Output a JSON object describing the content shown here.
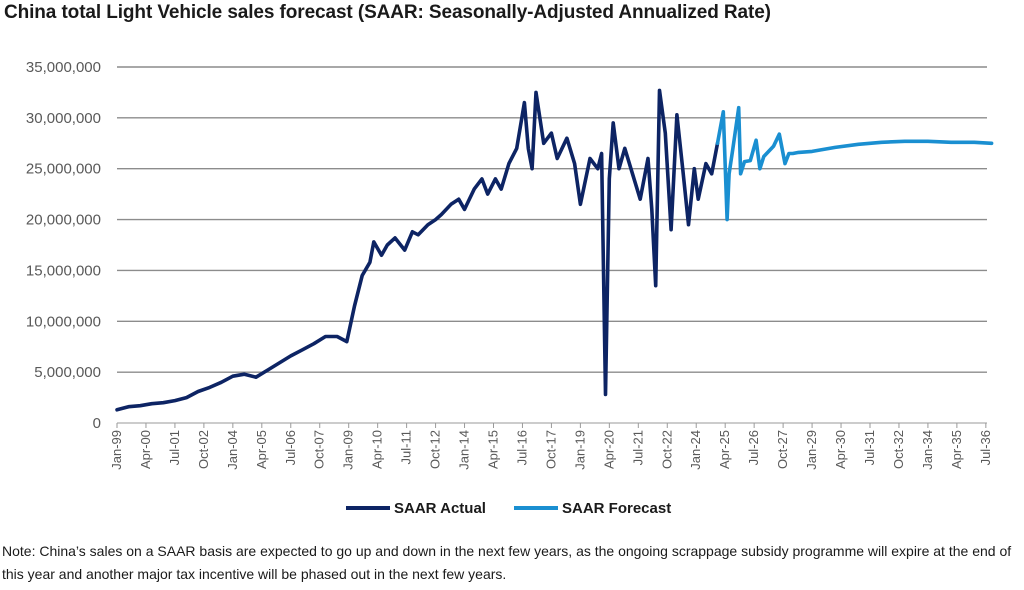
{
  "page": {
    "title": "China total Light Vehicle sales forecast (SAAR: Seasonally-Adjusted Annualized Rate)",
    "note": "Note: China’s sales on a SAAR basis are expected to go up and down in the next few years, as the ongoing scrappage subsidy programme will expire at the end of this year and another major tax incentive will be phased out in the next few years."
  },
  "chart_data": {
    "type": "line",
    "title": "China total Light Vehicle sales forecast (SAAR: Seasonally-Adjusted Annualized Rate)",
    "xlabel": "",
    "ylabel": "",
    "ylim": [
      0,
      35000000
    ],
    "grid": true,
    "legend_position": "bottom",
    "y_ticks": [
      0,
      5000000,
      10000000,
      15000000,
      20000000,
      25000000,
      30000000,
      35000000
    ],
    "y_tick_labels": [
      "0",
      "5,000,000",
      "10,000,000",
      "15,000,000",
      "20,000,000",
      "25,000,000",
      "30,000,000",
      "35,000,000"
    ],
    "x_tick_labels": [
      "Jan-99",
      "Apr-00",
      "Jul-01",
      "Oct-02",
      "Jan-04",
      "Apr-05",
      "Jul-06",
      "Oct-07",
      "Jan-09",
      "Apr-10",
      "Jul-11",
      "Oct-12",
      "Jan-14",
      "Apr-15",
      "Jul-16",
      "Oct-17",
      "Jan-19",
      "Apr-20",
      "Jul-21",
      "Oct-22",
      "Jan-24",
      "Apr-25",
      "Jul-26",
      "Oct-27",
      "Jan-29",
      "Apr-30",
      "Jul-31",
      "Oct-32",
      "Jan-34",
      "Apr-35",
      "Jul-36"
    ],
    "series": [
      {
        "name": "SAAR Actual",
        "color": "#0d2464",
        "x": [
          "1999-01",
          "1999-07",
          "2000-01",
          "2000-07",
          "2001-01",
          "2001-07",
          "2002-01",
          "2002-07",
          "2003-01",
          "2003-07",
          "2004-01",
          "2004-07",
          "2005-01",
          "2005-07",
          "2006-01",
          "2006-07",
          "2007-01",
          "2007-07",
          "2008-01",
          "2008-07",
          "2008-12",
          "2009-04",
          "2009-08",
          "2009-12",
          "2010-02",
          "2010-06",
          "2010-09",
          "2011-01",
          "2011-06",
          "2011-10",
          "2012-01",
          "2012-06",
          "2012-10",
          "2013-01",
          "2013-06",
          "2013-10",
          "2014-01",
          "2014-06",
          "2014-10",
          "2015-01",
          "2015-05",
          "2015-08",
          "2015-12",
          "2016-04",
          "2016-08",
          "2016-10",
          "2016-12",
          "2017-02",
          "2017-06",
          "2017-10",
          "2018-01",
          "2018-06",
          "2018-10",
          "2019-01",
          "2019-06",
          "2019-10",
          "2019-12",
          "2020-02",
          "2020-04",
          "2020-06",
          "2020-09",
          "2020-12",
          "2021-04",
          "2021-08",
          "2021-12",
          "2022-02",
          "2022-04",
          "2022-06",
          "2022-09",
          "2022-12",
          "2023-03",
          "2023-06",
          "2023-09",
          "2023-12",
          "2024-02",
          "2024-06",
          "2024-09",
          "2024-12"
        ],
        "values": [
          1300000,
          1600000,
          1700000,
          1900000,
          2000000,
          2200000,
          2500000,
          3100000,
          3500000,
          4000000,
          4600000,
          4800000,
          4500000,
          5200000,
          5900000,
          6600000,
          7200000,
          7800000,
          8500000,
          8500000,
          8000000,
          11500000,
          14500000,
          15800000,
          17800000,
          16500000,
          17500000,
          18200000,
          17000000,
          18800000,
          18500000,
          19500000,
          20000000,
          20500000,
          21500000,
          22000000,
          21000000,
          23000000,
          24000000,
          22500000,
          24000000,
          23000000,
          25500000,
          27000000,
          31500000,
          27000000,
          25000000,
          32500000,
          27500000,
          28500000,
          26000000,
          28000000,
          25500000,
          21500000,
          26000000,
          25000000,
          26500000,
          2800000,
          24000000,
          29500000,
          25000000,
          27000000,
          24500000,
          22000000,
          26000000,
          21000000,
          13500000,
          32700000,
          28500000,
          19000000,
          30300000,
          25000000,
          19500000,
          25000000,
          22000000,
          25500000,
          24500000,
          27500000
        ]
      },
      {
        "name": "SAAR Forecast",
        "color": "#1a8fd1",
        "x": [
          "2024-12",
          "2025-03",
          "2025-05",
          "2025-06",
          "2025-08",
          "2025-11",
          "2025-12",
          "2026-02",
          "2026-05",
          "2026-08",
          "2026-10",
          "2026-12",
          "2027-01",
          "2027-05",
          "2027-08",
          "2027-11",
          "2028-01",
          "2028-03",
          "2028-06",
          "2029-01",
          "2030-01",
          "2031-01",
          "2032-01",
          "2033-01",
          "2034-01",
          "2035-01",
          "2036-01",
          "2036-10"
        ],
        "values": [
          27500000,
          30600000,
          20000000,
          24500000,
          27000000,
          31000000,
          24500000,
          25700000,
          25800000,
          27800000,
          25000000,
          26200000,
          26400000,
          27200000,
          28400000,
          25500000,
          26500000,
          26500000,
          26600000,
          26700000,
          27100000,
          27400000,
          27600000,
          27700000,
          27700000,
          27600000,
          27600000,
          27500000
        ]
      }
    ]
  }
}
